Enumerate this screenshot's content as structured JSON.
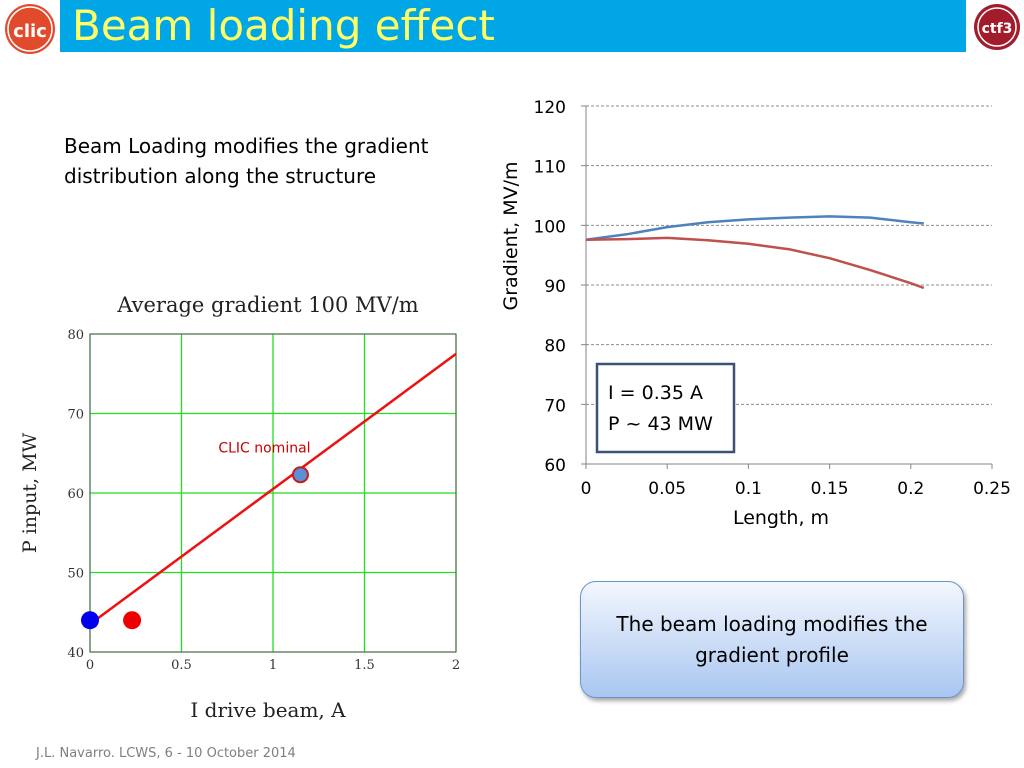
{
  "slide": {
    "title": "Beam loading effect",
    "intro_text": "Beam Loading modifies the gradient distribution along the structure",
    "footer": "J.L. Navarro. LCWS, 6 - 10 October 2014",
    "callout": "The beam loading modifies the gradient profile",
    "colors": {
      "title_bar": "#00a6e6",
      "title_text": "#ffff66"
    }
  },
  "logos": {
    "left": {
      "icon": "clic-logo",
      "text": "clic",
      "color": "#e0452b"
    },
    "right": {
      "icon": "ctf3-logo",
      "text": "ctf3",
      "color": "#a0192b"
    }
  },
  "chart_data": [
    {
      "type": "line",
      "title": "Average gradient 100 MV/m",
      "xlabel": "I drive beam, A",
      "ylabel": "P input, MW",
      "xlim": [
        0,
        2
      ],
      "ylim": [
        40,
        80
      ],
      "xticks": [
        "0",
        "0.5",
        "1",
        "1.5",
        "2"
      ],
      "yticks": [
        "40",
        "50",
        "60",
        "70",
        "80"
      ],
      "grid": true,
      "grid_color": "#22dd22",
      "series": [
        {
          "color": "#ee1111",
          "x": [
            0,
            2
          ],
          "y": [
            43.5,
            77.5
          ]
        }
      ],
      "points": [
        {
          "x": 0,
          "y": 44,
          "color": "#0000ee"
        },
        {
          "x": 0.23,
          "y": 44,
          "color": "#ee0000"
        },
        {
          "x": 1.15,
          "y": 62.3,
          "color": "#5b8fd6",
          "label": "CLIC nominal",
          "label_color": "#cc0000"
        }
      ]
    },
    {
      "type": "line",
      "xlabel": "Length, m",
      "ylabel": "Gradient, MV/m",
      "xlim": [
        0,
        0.25
      ],
      "ylim": [
        60,
        120
      ],
      "xticks": [
        "0",
        "0.05",
        "0.1",
        "0.15",
        "0.2",
        "0.25"
      ],
      "yticks": [
        "60",
        "70",
        "80",
        "90",
        "100",
        "110",
        "120"
      ],
      "grid": true,
      "series": [
        {
          "color": "#4f81bd",
          "x": [
            0,
            0.025,
            0.05,
            0.075,
            0.1,
            0.125,
            0.15,
            0.175,
            0.2,
            0.208
          ],
          "y": [
            97.6,
            98.5,
            99.7,
            100.5,
            101.0,
            101.3,
            101.5,
            101.3,
            100.5,
            100.3
          ]
        },
        {
          "color": "#c0504d",
          "x": [
            0,
            0.025,
            0.05,
            0.075,
            0.1,
            0.125,
            0.15,
            0.175,
            0.2,
            0.208
          ],
          "y": [
            97.6,
            97.7,
            97.9,
            97.5,
            96.9,
            96.0,
            94.5,
            92.5,
            90.3,
            89.5
          ]
        }
      ],
      "annotation": {
        "line1": "I = 0.35 A",
        "line2": "P ~ 43 MW"
      }
    }
  ]
}
